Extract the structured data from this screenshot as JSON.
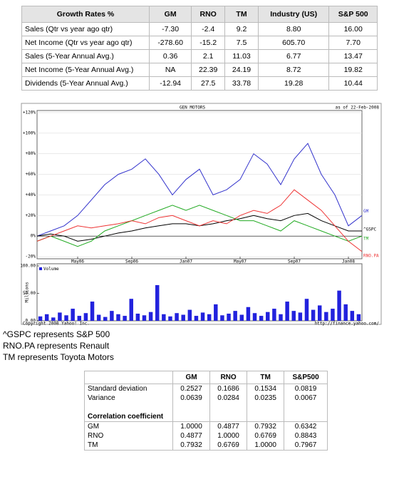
{
  "growth_table": {
    "header": [
      "Growth Rates %",
      "GM",
      "RNO",
      "TM",
      "Industry (US)",
      "S&P 500"
    ],
    "rows": [
      [
        "Sales (Qtr vs year ago qtr)",
        "-7.30",
        "-2.4",
        "9.2",
        "8.80",
        "16.00"
      ],
      [
        "Net Income (Qtr vs year ago qtr)",
        "-278.60",
        "-15.2",
        "7.5",
        "605.70",
        "7.70"
      ],
      [
        "Sales (5-Year Annual Avg.)",
        "0.36",
        "2.1",
        "11.03",
        "6.77",
        "13.47"
      ],
      [
        "Net Income (5-Year Annual Avg.)",
        "NA",
        "22.39",
        "24.19",
        "8.72",
        "19.82"
      ],
      [
        "Dividends (5-Year Annual Avg.)",
        "-12.94",
        "27.5",
        "33.78",
        "19.28",
        "10.44"
      ]
    ]
  },
  "chart_data": [
    {
      "type": "line",
      "title": "GEN MOTORS",
      "subtitle": "as of 22-Feb-2008",
      "categories": [
        null,
        null,
        null,
        "May06",
        null,
        null,
        null,
        "Sep06",
        null,
        null,
        null,
        "Jan07",
        null,
        null,
        null,
        "May07",
        null,
        null,
        null,
        "Sep07",
        null,
        null,
        null,
        "Jan08",
        null
      ],
      "series": [
        {
          "name": "GM",
          "color": "#3333cc",
          "values": [
            0,
            5,
            10,
            20,
            35,
            50,
            60,
            65,
            75,
            60,
            40,
            55,
            65,
            40,
            45,
            55,
            80,
            70,
            50,
            75,
            90,
            60,
            40,
            10,
            20
          ]
        },
        {
          "name": "^GSPC",
          "color": "#000000",
          "values": [
            0,
            2,
            0,
            -5,
            -3,
            0,
            3,
            5,
            8,
            10,
            12,
            12,
            10,
            12,
            15,
            17,
            20,
            17,
            15,
            20,
            22,
            15,
            10,
            5,
            5
          ]
        },
        {
          "name": "TM",
          "color": "#22aa22",
          "values": [
            -5,
            0,
            -5,
            -10,
            -5,
            5,
            10,
            15,
            20,
            25,
            30,
            25,
            30,
            25,
            20,
            15,
            15,
            10,
            5,
            15,
            10,
            5,
            0,
            -5,
            0
          ]
        },
        {
          "name": "RNO.PA",
          "color": "#ee3333",
          "values": [
            -5,
            0,
            5,
            10,
            8,
            10,
            12,
            15,
            12,
            18,
            20,
            15,
            10,
            15,
            12,
            20,
            25,
            22,
            30,
            45,
            35,
            25,
            10,
            -5,
            -15
          ]
        }
      ],
      "ylim": [
        -22,
        122
      ],
      "yticks": [
        {
          "value": -20,
          "label": "-20%"
        },
        {
          "value": 0,
          "label": "0%"
        },
        {
          "value": 20,
          "label": "+20%"
        },
        {
          "value": 40,
          "label": "+40%"
        },
        {
          "value": 60,
          "label": "+60%"
        },
        {
          "value": 80,
          "label": "+80%"
        },
        {
          "value": 100,
          "label": "+100%"
        },
        {
          "value": 120,
          "label": "+120%"
        }
      ],
      "grid": true
    },
    {
      "type": "bar",
      "y_label": "Millions",
      "legend": "Volume",
      "color": "#2222dd",
      "values": [
        8,
        12,
        6,
        15,
        10,
        22,
        9,
        14,
        35,
        11,
        7,
        18,
        12,
        9,
        40,
        13,
        10,
        16,
        65,
        12,
        8,
        14,
        11,
        20,
        9,
        15,
        12,
        30,
        10,
        13,
        18,
        11,
        25,
        14,
        9,
        16,
        22,
        12,
        35,
        18,
        15,
        40,
        20,
        28,
        16,
        22,
        55,
        30,
        18,
        12
      ],
      "ylim": [
        0,
        100
      ],
      "yticks": [
        {
          "value": 0,
          "label": "0.00"
        },
        {
          "value": 50,
          "label": "50.00"
        },
        {
          "value": 100,
          "label": "100.00"
        }
      ],
      "copyright": "Copyright 2008 Yahoo! Inc.",
      "source": "http://finance.yahoo.com/"
    }
  ],
  "notes": [
    "^GSPC represents S&P 500",
    "RNO.PA represents Renault",
    "TM represents Toyota Motors"
  ],
  "stats_table": {
    "header": [
      "",
      "GM",
      "RNO",
      "TM",
      "S&P500"
    ],
    "rows": [
      [
        "Standard deviation",
        "0.2527",
        "0.1686",
        "0.1534",
        "0.0819"
      ],
      [
        "Variance",
        "0.0639",
        "0.0284",
        "0.0235",
        "0.0067"
      ],
      [
        "Correlation coefficient"
      ],
      [
        "GM",
        "1.0000",
        "0.4877",
        "0.7932",
        "0.6342"
      ],
      [
        "RNO",
        "0.4877",
        "1.0000",
        "0.6769",
        "0.8843"
      ],
      [
        "TM",
        "0.7932",
        "0.6769",
        "1.0000",
        "0.7967"
      ]
    ]
  }
}
